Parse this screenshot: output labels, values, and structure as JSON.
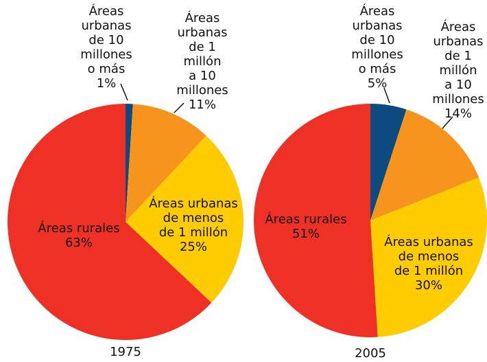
{
  "chart_data": [
    {
      "type": "pie",
      "title": "1975",
      "categories": [
        "Áreas urbanas de 10 millones o más",
        "Áreas urbanas de 1 millón a 10 millones",
        "Áreas urbanas de menos de 1 millón",
        "Áreas rurales"
      ],
      "values": [
        1,
        11,
        25,
        63
      ],
      "value_labels": [
        "1%",
        "11%",
        "25%",
        "63%"
      ],
      "colors": [
        "#0d4a80",
        "#f7941d",
        "#ffcc00",
        "#ee3124"
      ]
    },
    {
      "type": "pie",
      "title": "2005",
      "categories": [
        "Áreas urbanas de 10 millones o más",
        "Áreas urbanas de 1 millón a 10 millones",
        "Áreas urbanas de menos de 1 millón",
        "Áreas rurales"
      ],
      "values": [
        5,
        14,
        30,
        51
      ],
      "value_labels": [
        "5%",
        "14%",
        "30%",
        "51%"
      ],
      "colors": [
        "#0d4a80",
        "#f7941d",
        "#ffcc00",
        "#ee3124"
      ]
    }
  ]
}
